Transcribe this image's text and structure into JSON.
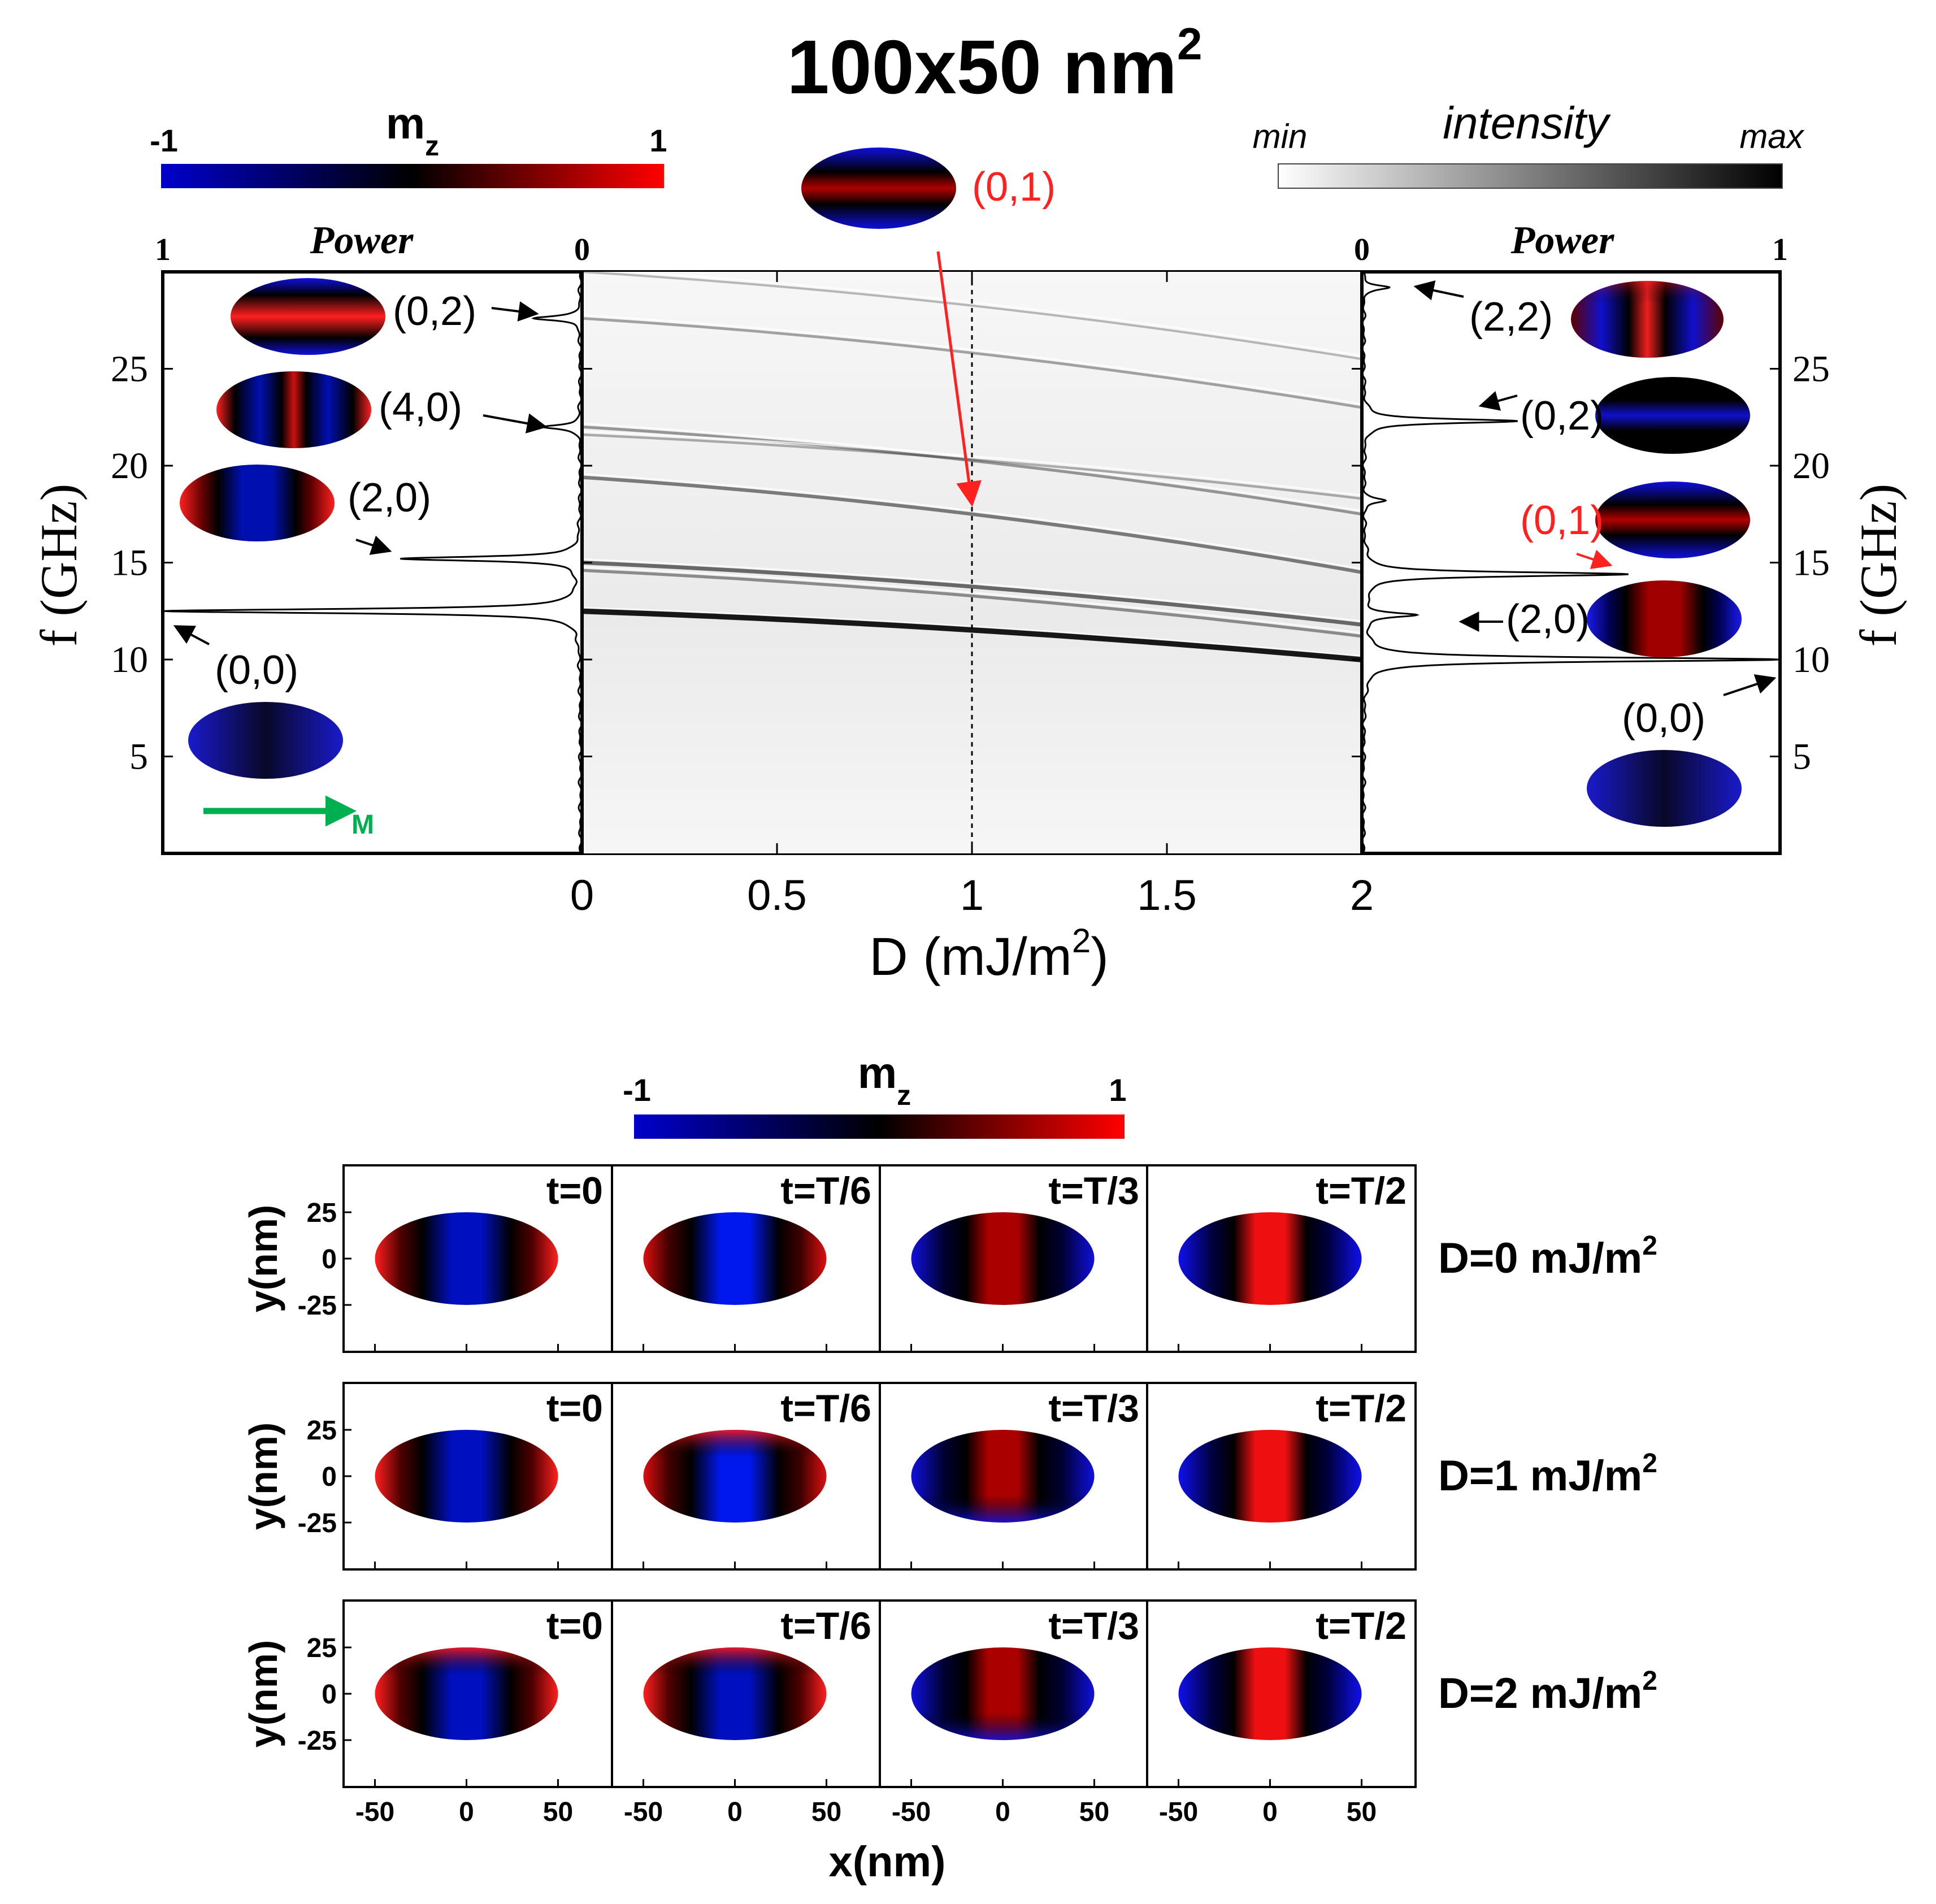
{
  "title": {
    "main": "100x50 nm",
    "sup": "2"
  },
  "colorbar_mz": {
    "label": "m",
    "sub": "z",
    "min": "-1",
    "max": "1",
    "colors": [
      "#0000cc",
      "#000000",
      "#ff0000"
    ]
  },
  "colorbar_intensity": {
    "label": "intensity",
    "min": "min",
    "max": "max",
    "colors": [
      "#ffffff",
      "#000000"
    ]
  },
  "center_mode": {
    "label": "(0,1)",
    "color": "#ff2020"
  },
  "chart_data": [
    {
      "type": "heatmap",
      "name": "dispersion-map",
      "xlabel": "D (mJ/m",
      "xlabel_sup": "2",
      "xlabel_end": ")",
      "ylabel": "f (GHz)",
      "xlim": [
        0,
        2
      ],
      "ylim": [
        0,
        30
      ],
      "xticks": [
        0,
        0.5,
        1,
        1.5,
        2
      ],
      "xtick_labels": [
        "0",
        "0.5",
        "1",
        "1.5",
        "2"
      ],
      "yticks": [
        5,
        10,
        15,
        20,
        25
      ],
      "ytick_labels": [
        "5",
        "10",
        "15",
        "20",
        "25"
      ],
      "marker_line_x": 1,
      "marker_arrow_label": "(0,1)",
      "marker_arrow_target": [
        1,
        18
      ],
      "branches": [
        {
          "mode": "(0,0)",
          "f0": 12.5,
          "f2": 10.0,
          "strength": 1.0
        },
        {
          "mode": "(2,0)",
          "f0": 15.0,
          "f2": 11.8,
          "strength": 0.55
        },
        {
          "mode": "(2,0) split",
          "f0": 14.6,
          "f2": 11.2,
          "strength": 0.35
        },
        {
          "mode": "(0,1)",
          "f0": 19.4,
          "f2": 14.5,
          "strength": 0.45
        },
        {
          "mode": "(4,0)",
          "f0": 22.0,
          "f2": 17.5,
          "strength": 0.3
        },
        {
          "mode": "(4,0) split",
          "f0": 21.6,
          "f2": 18.3,
          "strength": 0.2
        },
        {
          "mode": "(0,2)",
          "f0": 27.6,
          "f2": 23.0,
          "strength": 0.25
        },
        {
          "mode": "(2,2)",
          "f0": 30.0,
          "f2": 25.5,
          "strength": 0.15
        }
      ]
    },
    {
      "type": "line",
      "name": "power-spectrum-left",
      "title": "Power",
      "condition": "D = 0",
      "xlim_labels": [
        "1",
        "0"
      ],
      "ylabel": "f (GHz)",
      "peaks": [
        {
          "f": 12.5,
          "power": 1.0
        },
        {
          "f": 15.2,
          "power": 0.43
        },
        {
          "f": 22.0,
          "power": 0.09
        },
        {
          "f": 27.6,
          "power": 0.11
        }
      ],
      "mode_labels": [
        {
          "text": "(0,2)",
          "f": 27.6
        },
        {
          "text": "(4,0)",
          "f": 22.0
        },
        {
          "text": "(2,0)",
          "f": 15.2
        },
        {
          "text": "(0,0)",
          "f": 12.5
        }
      ],
      "magnetization_label": "M"
    },
    {
      "type": "line",
      "name": "power-spectrum-right",
      "title": "Power",
      "condition": "D = 2",
      "xlim_labels": [
        "0",
        "1"
      ],
      "ylabel": "f (GHz)",
      "peaks": [
        {
          "f": 10.0,
          "power": 1.0
        },
        {
          "f": 12.3,
          "power": 0.12
        },
        {
          "f": 14.4,
          "power": 0.63
        },
        {
          "f": 18.2,
          "power": 0.05
        },
        {
          "f": 22.3,
          "power": 0.37
        },
        {
          "f": 29.2,
          "power": 0.06
        }
      ],
      "mode_labels": [
        {
          "text": "(2,2)",
          "f": 29.2
        },
        {
          "text": "(0,2)",
          "f": 22.3
        },
        {
          "text": "(0,1)",
          "f": 14.4
        },
        {
          "text": "(2,0)",
          "f": 12.3
        },
        {
          "text": "(0,0)",
          "f": 10.0
        }
      ]
    },
    {
      "type": "heatmap",
      "name": "time-snapshots",
      "colorbar": {
        "label": "m",
        "sub": "z",
        "min": "-1",
        "max": "1"
      },
      "xlabel": "x(nm)",
      "ylabel": "y(nm)",
      "xticks": [
        -50,
        0,
        50
      ],
      "xtick_labels": [
        "-50",
        "0",
        "50"
      ],
      "yticks": [
        25,
        0,
        -25
      ],
      "ytick_labels": [
        "25",
        "0",
        "-25"
      ],
      "columns": [
        "t=0",
        "t=T/6",
        "t=T/3",
        "t=T/2"
      ],
      "rows": [
        {
          "label": "D=0 mJ/m",
          "sup": "2"
        },
        {
          "label": "D=1 mJ/m",
          "sup": "2"
        },
        {
          "label": "D=2 mJ/m",
          "sup": "2"
        }
      ]
    }
  ]
}
